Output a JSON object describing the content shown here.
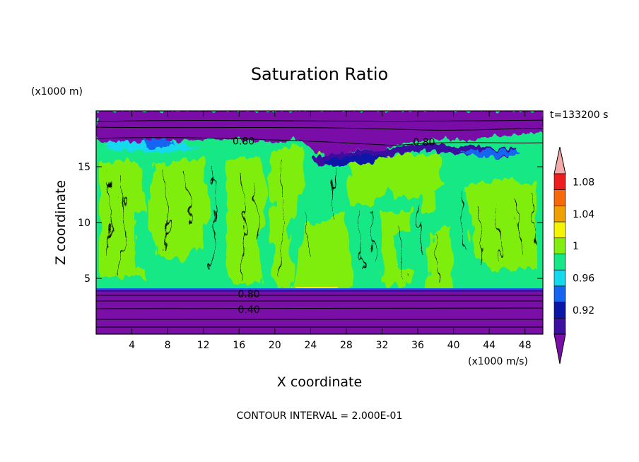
{
  "chart_data": {
    "type": "heatmap",
    "title": "Saturation Ratio",
    "xlabel": "X coordinate",
    "ylabel": "Z coordinate",
    "x_units": "(x1000 m/s)",
    "y_units": "(x1000 m)",
    "time_label": "t=133200 s",
    "footer": "CONTOUR INTERVAL = 2.000E-01",
    "xlim": [
      0,
      50
    ],
    "ylim": [
      0,
      20
    ],
    "x_ticks": [
      4,
      8,
      12,
      16,
      20,
      24,
      28,
      32,
      36,
      40,
      44,
      48
    ],
    "y_ticks": [
      5,
      10,
      15
    ],
    "contour_labels": [
      {
        "text": "0.80",
        "x": 16.5,
        "z": 17.3
      },
      {
        "text": "0.80",
        "x": 36.7,
        "z": 17.2
      },
      {
        "text": "0.80",
        "x": 17.1,
        "z": 3.6
      },
      {
        "text": "0.40",
        "x": 17.1,
        "z": 2.2
      }
    ],
    "colorbar": {
      "levels": [
        "0.92",
        "0.96",
        "1",
        "1.04",
        "1.08"
      ],
      "colors": [
        "#7a0fa8",
        "#3d10a0",
        "#0b16a6",
        "#1565f0",
        "#14d8ee",
        "#16e885",
        "#80ee10",
        "#f4f404",
        "#f0a000",
        "#f76a0a",
        "#ee1e1e",
        "#f2aaaa"
      ],
      "extend": "both"
    },
    "regions_description_values": {
      "below_z4": "< 0.92 (purple), contour lines 0.40 to 0.80",
      "z4_to_z17": "0.98 to 1.02 (green / lime)",
      "above_z17": "< 0.92 (purple)"
    }
  }
}
